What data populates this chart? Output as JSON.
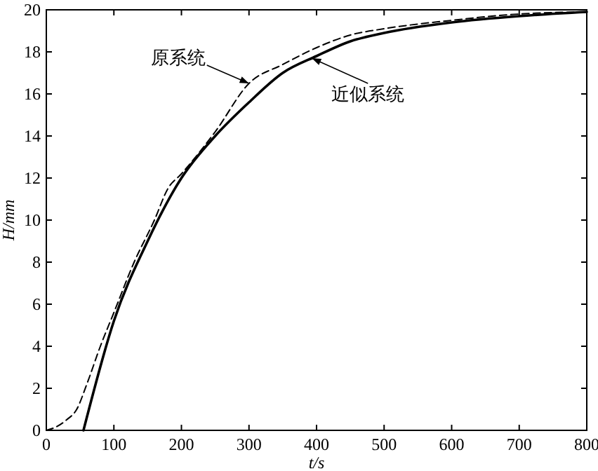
{
  "chart_data": {
    "type": "line",
    "xlabel": "t/s",
    "ylabel": "H/mm",
    "xlim": [
      0,
      800
    ],
    "ylim": [
      0,
      20
    ],
    "xticks": [
      0,
      100,
      200,
      300,
      400,
      500,
      600,
      700,
      800
    ],
    "yticks": [
      0,
      2,
      4,
      6,
      8,
      10,
      12,
      14,
      16,
      18,
      20
    ],
    "grid": false,
    "marker": "none",
    "series": [
      {
        "color": "#000000",
        "line_style": "solid",
        "x": [
          55,
          100,
          150,
          200,
          250,
          300,
          350,
          400,
          450,
          500,
          600,
          700,
          800
        ],
        "values": [
          0,
          5.2,
          9,
          12,
          14,
          15.6,
          17,
          17.8,
          18.5,
          18.9,
          19.4,
          19.7,
          19.9
        ]
      },
      {
        "color": "#000000",
        "line_style": "dashed",
        "x": [
          0,
          10,
          30,
          45,
          60,
          80,
          100,
          130,
          160,
          180,
          200,
          250,
          300,
          350,
          400,
          450,
          500,
          600,
          700,
          800
        ],
        "values": [
          0,
          0.1,
          0.5,
          1,
          2.2,
          4,
          5.6,
          8,
          10,
          11.5,
          12.2,
          14.2,
          16.5,
          17.4,
          18.2,
          18.8,
          19.1,
          19.5,
          19.8,
          19.9
        ]
      }
    ],
    "annotations": [
      {
        "text": "原系统",
        "x": 300,
        "y": 16.5
      },
      {
        "text": "近似系统",
        "x": 393,
        "y": 17.7
      }
    ]
  }
}
